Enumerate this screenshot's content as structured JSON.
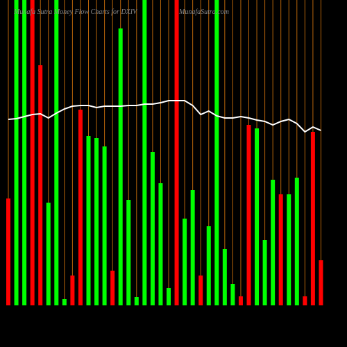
{
  "chart_data": {
    "type": "bar",
    "title": "Munafa Sutra  Money Flow  Charts for DXIV",
    "subtitle": "MunafaSutra.com",
    "categories": [
      null,
      null,
      null,
      null,
      null,
      null,
      null,
      null,
      null,
      null,
      null,
      null,
      null,
      null,
      null,
      null,
      null,
      null,
      null,
      null,
      null,
      null,
      null,
      null,
      null,
      null,
      null,
      null,
      null,
      null,
      null,
      null,
      null,
      null,
      null,
      null,
      null,
      null,
      null,
      null
    ],
    "series": [
      {
        "type": "bar",
        "values": [
          154,
          440,
          440,
          440,
          346,
          148,
          440,
          9,
          43,
          282,
          244,
          241,
          229,
          50,
          399,
          152,
          12,
          440,
          221,
          176,
          25,
          440,
          125,
          166,
          43,
          114,
          440,
          81,
          31,
          13,
          260,
          255,
          94,
          181,
          160,
          160,
          184,
          13,
          250,
          65
        ],
        "colors": [
          "#ff0000",
          "#00ff00",
          "#00ff00",
          "#ff0000",
          "#ff0000",
          "#00ff00",
          "#00ff00",
          "#00ff00",
          "#ff0000",
          "#ff0000",
          "#00ff00",
          "#00ff00",
          "#00ff00",
          "#ff0000",
          "#00ff00",
          "#00ff00",
          "#00ff00",
          "#00ff00",
          "#00ff00",
          "#00ff00",
          "#00ff00",
          "#ff0000",
          "#00ff00",
          "#00ff00",
          "#ff0000",
          "#00ff00",
          "#00ff00",
          "#00ff00",
          "#00ff00",
          "#ff0000",
          "#ff0000",
          "#00ff00",
          "#00ff00",
          "#00ff00",
          "#ff0000",
          "#00ff00",
          "#00ff00",
          "#ff0000",
          "#ff0000",
          "#ff0000"
        ]
      },
      {
        "type": "line",
        "color": "#ffffff",
        "values": [
          268,
          269,
          272,
          275,
          276,
          270,
          277,
          283,
          287,
          288,
          288,
          285,
          287,
          287,
          287,
          288,
          288,
          290,
          290,
          292,
          295,
          295,
          295,
          288,
          275,
          280,
          273,
          270,
          270,
          272,
          270,
          267,
          265,
          260,
          265,
          268,
          262,
          250,
          257,
          252
        ]
      }
    ],
    "ylim": [
      0,
      440
    ],
    "grid": true,
    "grid_color": "#b8650a"
  }
}
